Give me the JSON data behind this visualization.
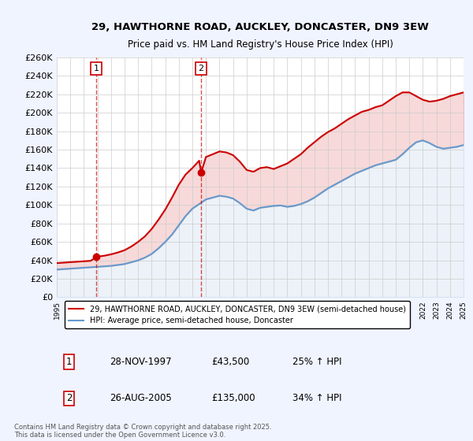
{
  "title": "29, HAWTHORNE ROAD, AUCKLEY, DONCASTER, DN9 3EW",
  "subtitle": "Price paid vs. HM Land Registry's House Price Index (HPI)",
  "ylabel_ticks": [
    "£0",
    "£20K",
    "£40K",
    "£60K",
    "£80K",
    "£100K",
    "£120K",
    "£140K",
    "£160K",
    "£180K",
    "£200K",
    "£220K",
    "£240K",
    "£260K"
  ],
  "ylim": [
    0,
    260000
  ],
  "yticks": [
    0,
    20000,
    40000,
    60000,
    80000,
    100000,
    120000,
    140000,
    160000,
    180000,
    200000,
    220000,
    240000,
    260000
  ],
  "xlim": [
    1995,
    2025
  ],
  "sale1_x": 1997.91,
  "sale1_y": 43500,
  "sale2_x": 2005.65,
  "sale2_y": 135000,
  "sale1_label": "1",
  "sale2_label": "2",
  "line_color_property": "#cc0000",
  "line_color_hpi": "#6699cc",
  "vline_color": "#cc0000",
  "background_color": "#f0f4ff",
  "plot_bg": "#ffffff",
  "legend_entry1": "29, HAWTHORNE ROAD, AUCKLEY, DONCASTER, DN9 3EW (semi-detached house)",
  "legend_entry2": "HPI: Average price, semi-detached house, Doncaster",
  "table_row1": [
    "1",
    "28-NOV-1997",
    "£43,500",
    "25% ↑ HPI"
  ],
  "table_row2": [
    "2",
    "26-AUG-2005",
    "£135,000",
    "34% ↑ HPI"
  ],
  "footer": "Contains HM Land Registry data © Crown copyright and database right 2025.\nThis data is licensed under the Open Government Licence v3.0.",
  "hpi_years": [
    1995,
    1995.5,
    1996,
    1996.5,
    1997,
    1997.5,
    1998,
    1998.5,
    1999,
    1999.5,
    2000,
    2000.5,
    2001,
    2001.5,
    2002,
    2002.5,
    2003,
    2003.5,
    2004,
    2004.5,
    2005,
    2005.5,
    2006,
    2006.5,
    2007,
    2007.5,
    2008,
    2008.5,
    2009,
    2009.5,
    2010,
    2010.5,
    2011,
    2011.5,
    2012,
    2012.5,
    2013,
    2013.5,
    2014,
    2014.5,
    2015,
    2015.5,
    2016,
    2016.5,
    2017,
    2017.5,
    2018,
    2018.5,
    2019,
    2019.5,
    2020,
    2020.5,
    2021,
    2021.5,
    2022,
    2022.5,
    2023,
    2023.5,
    2024,
    2024.5,
    2025
  ],
  "hpi_values": [
    30000,
    30500,
    31000,
    31500,
    32000,
    32500,
    33000,
    33500,
    34000,
    35000,
    36000,
    38000,
    40000,
    43000,
    47000,
    53000,
    60000,
    68000,
    78000,
    88000,
    96000,
    101000,
    106000,
    108000,
    110000,
    109000,
    107000,
    102000,
    96000,
    94000,
    97000,
    98000,
    99000,
    99500,
    98000,
    99000,
    101000,
    104000,
    108000,
    113000,
    118000,
    122000,
    126000,
    130000,
    134000,
    137000,
    140000,
    143000,
    145000,
    147000,
    149000,
    155000,
    162000,
    168000,
    170000,
    167000,
    163000,
    161000,
    162000,
    163000,
    165000
  ],
  "prop_years": [
    1995,
    1995.5,
    1996,
    1996.5,
    1997,
    1997.5,
    1997.91,
    1998,
    1998.5,
    1999,
    1999.5,
    2000,
    2000.5,
    2001,
    2001.5,
    2002,
    2002.5,
    2003,
    2003.5,
    2004,
    2004.5,
    2005,
    2005.5,
    2005.65,
    2006,
    2006.5,
    2007,
    2007.5,
    2008,
    2008.5,
    2009,
    2009.5,
    2010,
    2010.5,
    2011,
    2011.5,
    2012,
    2012.5,
    2013,
    2013.5,
    2014,
    2014.5,
    2015,
    2015.5,
    2016,
    2016.5,
    2017,
    2017.5,
    2018,
    2018.5,
    2019,
    2019.5,
    2020,
    2020.5,
    2021,
    2021.5,
    2022,
    2022.5,
    2023,
    2023.5,
    2024,
    2024.5,
    2025
  ],
  "prop_values": [
    37000,
    37500,
    38000,
    38500,
    39000,
    39500,
    43500,
    44000,
    45000,
    46500,
    48500,
    51000,
    55000,
    60000,
    66000,
    74000,
    84000,
    95000,
    108000,
    122000,
    133000,
    140000,
    148000,
    135000,
    152000,
    155000,
    158000,
    157000,
    154000,
    147000,
    138000,
    136000,
    140000,
    141000,
    139000,
    142000,
    145000,
    150000,
    155000,
    162000,
    168000,
    174000,
    179000,
    183000,
    188000,
    193000,
    197000,
    201000,
    203000,
    206000,
    208000,
    213000,
    218000,
    222000,
    222000,
    218000,
    214000,
    212000,
    213000,
    215000,
    218000,
    220000,
    222000
  ]
}
